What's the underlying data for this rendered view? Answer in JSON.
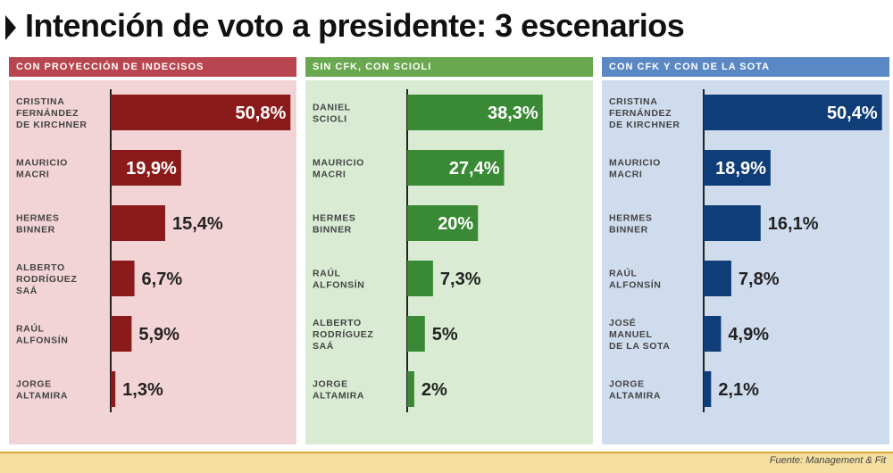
{
  "title": "Intención de voto a presidente: 3 escenarios",
  "source": "Fuente: Management & Fit",
  "colors": {
    "red_bar": "#8b1a1a",
    "red_header": "#b8454f",
    "red_bg": "#f2d3d6",
    "green_bar": "#3a8a35",
    "green_header": "#6aa84f",
    "green_bg": "#d9ecd3",
    "blue_bar": "#0f3d78",
    "blue_header": "#5a88c4",
    "blue_bg": "#cfdced"
  },
  "chart_data": [
    {
      "type": "bar",
      "title": "CON PROYECCIÓN DE INDECISOS",
      "color_key": "red",
      "categories": [
        [
          "CRISTINA",
          "FERNÁNDEZ",
          "DE KIRCHNER"
        ],
        [
          "MAURICIO",
          "MACRI"
        ],
        [
          "HERMES",
          "BINNER"
        ],
        [
          "ALBERTO",
          "RODRÍGUEZ",
          "SAÁ"
        ],
        [
          "RAÚL",
          "ALFONSÍN"
        ],
        [
          "JORGE",
          "ALTAMIRA"
        ]
      ],
      "values": [
        50.8,
        19.9,
        15.4,
        6.7,
        5.9,
        1.3
      ],
      "labels": [
        "50,8%",
        "19,9%",
        "15,4%",
        "6,7%",
        "5,9%",
        "1,3%"
      ]
    },
    {
      "type": "bar",
      "title": "SIN CFK, CON SCIOLI",
      "color_key": "green",
      "categories": [
        [
          "DANIEL",
          "SCIOLI"
        ],
        [
          "MAURICIO",
          "MACRI"
        ],
        [
          "HERMES",
          "BINNER"
        ],
        [
          "RAÚL",
          "ALFONSÍN"
        ],
        [
          "ALBERTO",
          "RODRÍGUEZ",
          "SAÁ"
        ],
        [
          "JORGE",
          "ALTAMIRA"
        ]
      ],
      "values": [
        38.3,
        27.4,
        20,
        7.3,
        5,
        2
      ],
      "labels": [
        "38,3%",
        "27,4%",
        "20%",
        "7,3%",
        "5%",
        "2%"
      ]
    },
    {
      "type": "bar",
      "title": "CON CFK Y CON DE LA SOTA",
      "color_key": "blue",
      "categories": [
        [
          "CRISTINA",
          "FERNÁNDEZ",
          "DE KIRCHNER"
        ],
        [
          "MAURICIO",
          "MACRI"
        ],
        [
          "HERMES",
          "BINNER"
        ],
        [
          "RAÚL",
          "ALFONSÍN"
        ],
        [
          "JOSÉ",
          "MANUEL",
          "DE LA SOTA"
        ],
        [
          "JORGE",
          "ALTAMIRA"
        ]
      ],
      "values": [
        50.4,
        18.9,
        16.1,
        7.8,
        4.9,
        2.1
      ],
      "labels": [
        "50,4%",
        "18,9%",
        "16,1%",
        "7,8%",
        "4,9%",
        "2,1%"
      ]
    }
  ]
}
